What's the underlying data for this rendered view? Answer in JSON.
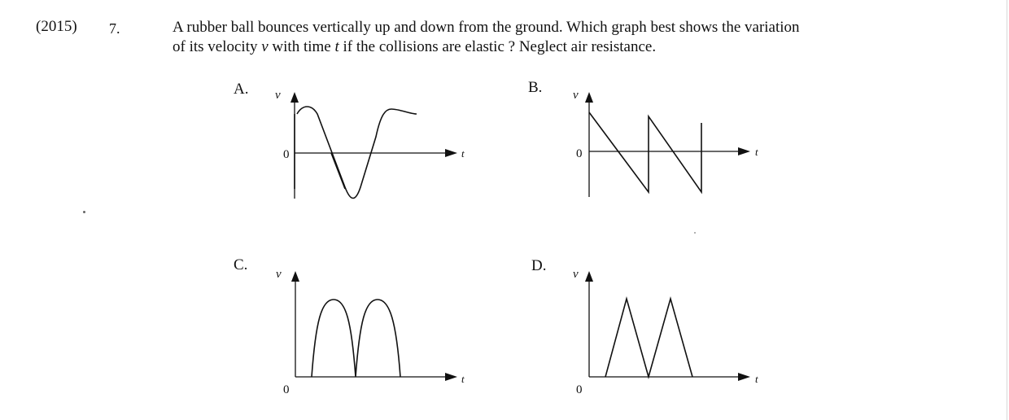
{
  "question": {
    "year": "(2015)",
    "number": "7.",
    "stem_line1": "A rubber ball bounces vertically up and down from the ground.  Which graph best shows the variation",
    "stem_line2_pre": "of its velocity ",
    "stem_var_v": "v",
    "stem_line2_mid": " with time ",
    "stem_var_t": "t",
    "stem_line2_post": " if the collisions are elastic ? Neglect air resistance."
  },
  "options": [
    {
      "letter": "A.",
      "y_label": "v",
      "x_label": "t",
      "origin_label": "0"
    },
    {
      "letter": "B.",
      "y_label": "v",
      "x_label": "t",
      "origin_label": "0"
    },
    {
      "letter": "C.",
      "y_label": "v",
      "x_label": "t",
      "origin_label": "0"
    },
    {
      "letter": "D.",
      "y_label": "v",
      "x_label": "t",
      "origin_label": "0"
    }
  ]
}
